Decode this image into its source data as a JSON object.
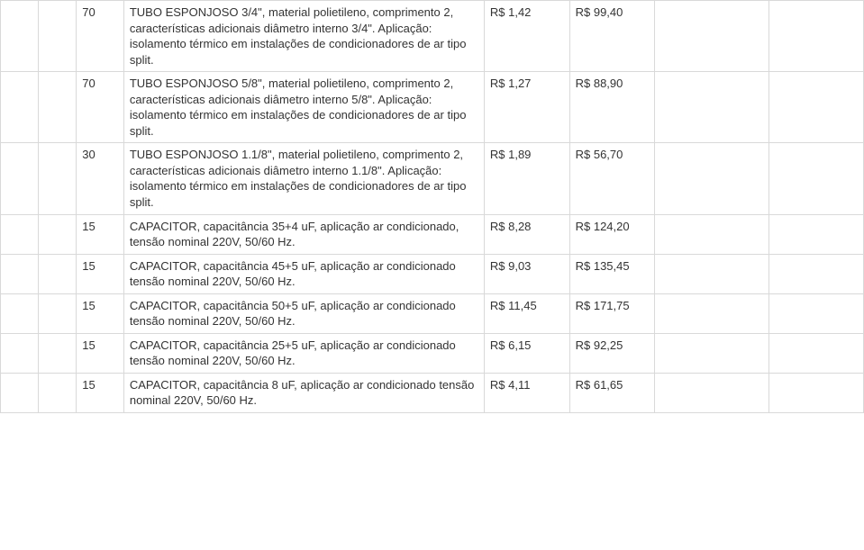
{
  "table": {
    "border_color": "#d9d9d9",
    "text_color": "#333333",
    "font_size": 13,
    "rows": [
      {
        "qty": "70",
        "desc": "TUBO ESPONJOSO 3/4\", material polietileno, comprimento 2, características adicionais diâmetro interno 3/4\". Aplicação: isolamento térmico em instalações de condicionadores de ar tipo split.",
        "unit": "R$ 1,42",
        "total": "R$ 99,40"
      },
      {
        "qty": "70",
        "desc": "TUBO ESPONJOSO 5/8\", material polietileno, comprimento 2, características adicionais diâmetro interno 5/8\". Aplicação: isolamento térmico em instalações de condicionadores de ar tipo split.",
        "unit": "R$ 1,27",
        "total": "R$ 88,90"
      },
      {
        "qty": "30",
        "desc": "TUBO ESPONJOSO 1.1/8\", material polietileno, comprimento 2, características adicionais diâmetro interno 1.1/8\". Aplicação: isolamento térmico em instalações de condicionadores de ar tipo split.",
        "unit": "R$ 1,89",
        "total": "R$ 56,70"
      },
      {
        "qty": "15",
        "desc": "CAPACITOR, capacitância 35+4 uF, aplicação ar condicionado, tensão nominal 220V, 50/60 Hz.",
        "unit": "R$ 8,28",
        "total": "R$ 124,20"
      },
      {
        "qty": "15",
        "desc": "CAPACITOR, capacitância 45+5 uF, aplicação ar condicionado tensão nominal 220V, 50/60 Hz.",
        "unit": "R$ 9,03",
        "total": "R$ 135,45"
      },
      {
        "qty": "15",
        "desc": "CAPACITOR, capacitância 50+5 uF, aplicação ar condicionado tensão nominal 220V, 50/60 Hz.",
        "unit": "R$ 11,45",
        "total": "R$ 171,75"
      },
      {
        "qty": "15",
        "desc": "CAPACITOR, capacitância 25+5 uF, aplicação ar condicionado tensão nominal 220V, 50/60 Hz.",
        "unit": "R$ 6,15",
        "total": "R$ 92,25"
      },
      {
        "qty": "15",
        "desc": "CAPACITOR, capacitância 8 uF, aplicação ar condicionado tensão nominal 220V, 50/60 Hz.",
        "unit": "R$ 4,11",
        "total": "R$ 61,65"
      }
    ]
  }
}
